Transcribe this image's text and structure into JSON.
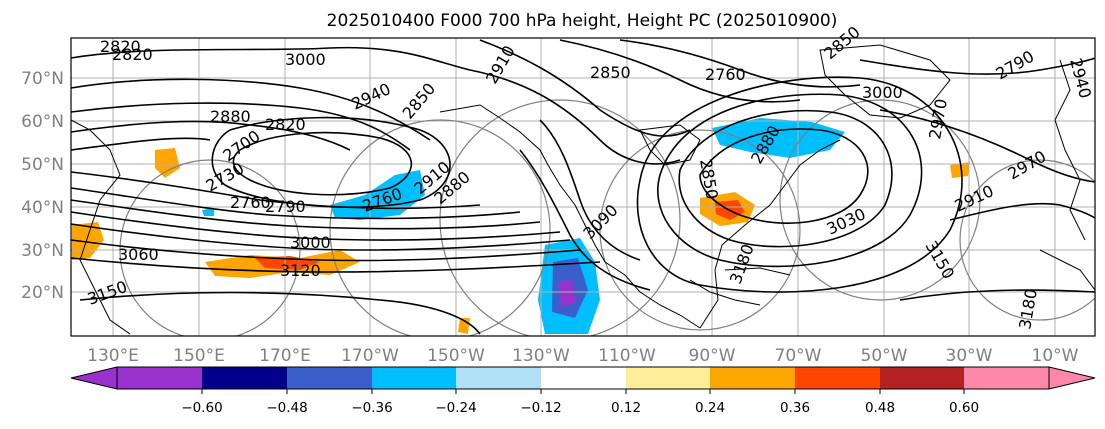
{
  "title": "2025010400 F000 700 hPa height, Height PC (2025010900)",
  "map": {
    "lat_ticks": [
      "70°N",
      "60°N",
      "50°N",
      "40°N",
      "30°N",
      "20°N"
    ],
    "lon_ticks": [
      "130°E",
      "150°E",
      "170°E",
      "170°W",
      "150°W",
      "130°W",
      "110°W",
      "90°W",
      "70°W",
      "50°W",
      "30°W",
      "10°W"
    ],
    "contour_labels": [
      "2820",
      "3000",
      "2910",
      "2850",
      "2850",
      "2940",
      "2820",
      "2880",
      "2850",
      "2820",
      "2700",
      "2730",
      "2760",
      "2790",
      "2880",
      "2760",
      "3000",
      "3060",
      "3120",
      "3150",
      "3090",
      "2850",
      "2880",
      "3000",
      "2910",
      "2970",
      "3030",
      "3150",
      "2970",
      "2940",
      "3180",
      "2910",
      "3180",
      "2760",
      "2790"
    ]
  },
  "colorbar": {
    "tick_labels": [
      "−0.60",
      "−0.48",
      "−0.36",
      "−0.24",
      "−0.12",
      "0.12",
      "0.24",
      "0.36",
      "0.48",
      "0.60"
    ],
    "colors": [
      "#9932cc",
      "#00008b",
      "#3a5fcd",
      "#00bfff",
      "#b0e0f6",
      "#ffffff",
      "#ffee99",
      "#ffa500",
      "#ff4500",
      "#b22222",
      "#ff88aa"
    ]
  }
}
